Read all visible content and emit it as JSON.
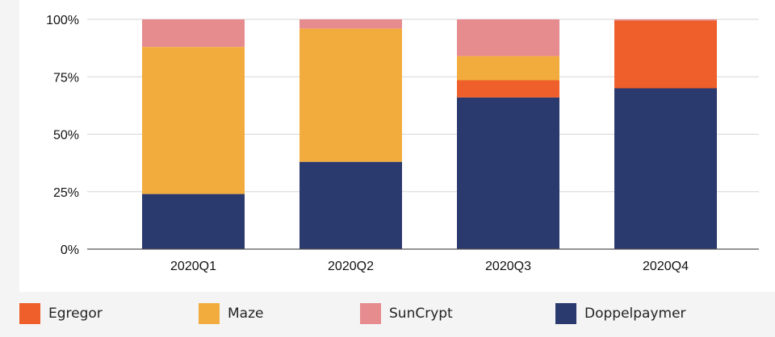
{
  "chart_data": {
    "type": "bar",
    "stacked": true,
    "normalized": true,
    "categories": [
      "2020Q1",
      "2020Q2",
      "2020Q3",
      "2020Q4"
    ],
    "y_ticks": [
      "0%",
      "25%",
      "50%",
      "75%",
      "100%"
    ],
    "ylim": [
      0,
      100
    ],
    "grid": true,
    "legend_position": "bottom",
    "series": [
      {
        "name": "Doppelpaymer",
        "color": "#2b3a6e",
        "values": [
          24,
          38,
          66,
          70
        ]
      },
      {
        "name": "Egregor",
        "color": "#ee5f2b",
        "values": [
          0,
          0,
          7.5,
          29.5
        ]
      },
      {
        "name": "Maze",
        "color": "#f2ac3d",
        "values": [
          64,
          58,
          10.5,
          0
        ]
      },
      {
        "name": "SunCrypt",
        "color": "#e68c8f",
        "values": [
          12,
          4,
          16,
          0.5
        ]
      }
    ],
    "legend_order": [
      "Egregor",
      "Maze",
      "SunCrypt",
      "Doppelpaymer"
    ]
  }
}
